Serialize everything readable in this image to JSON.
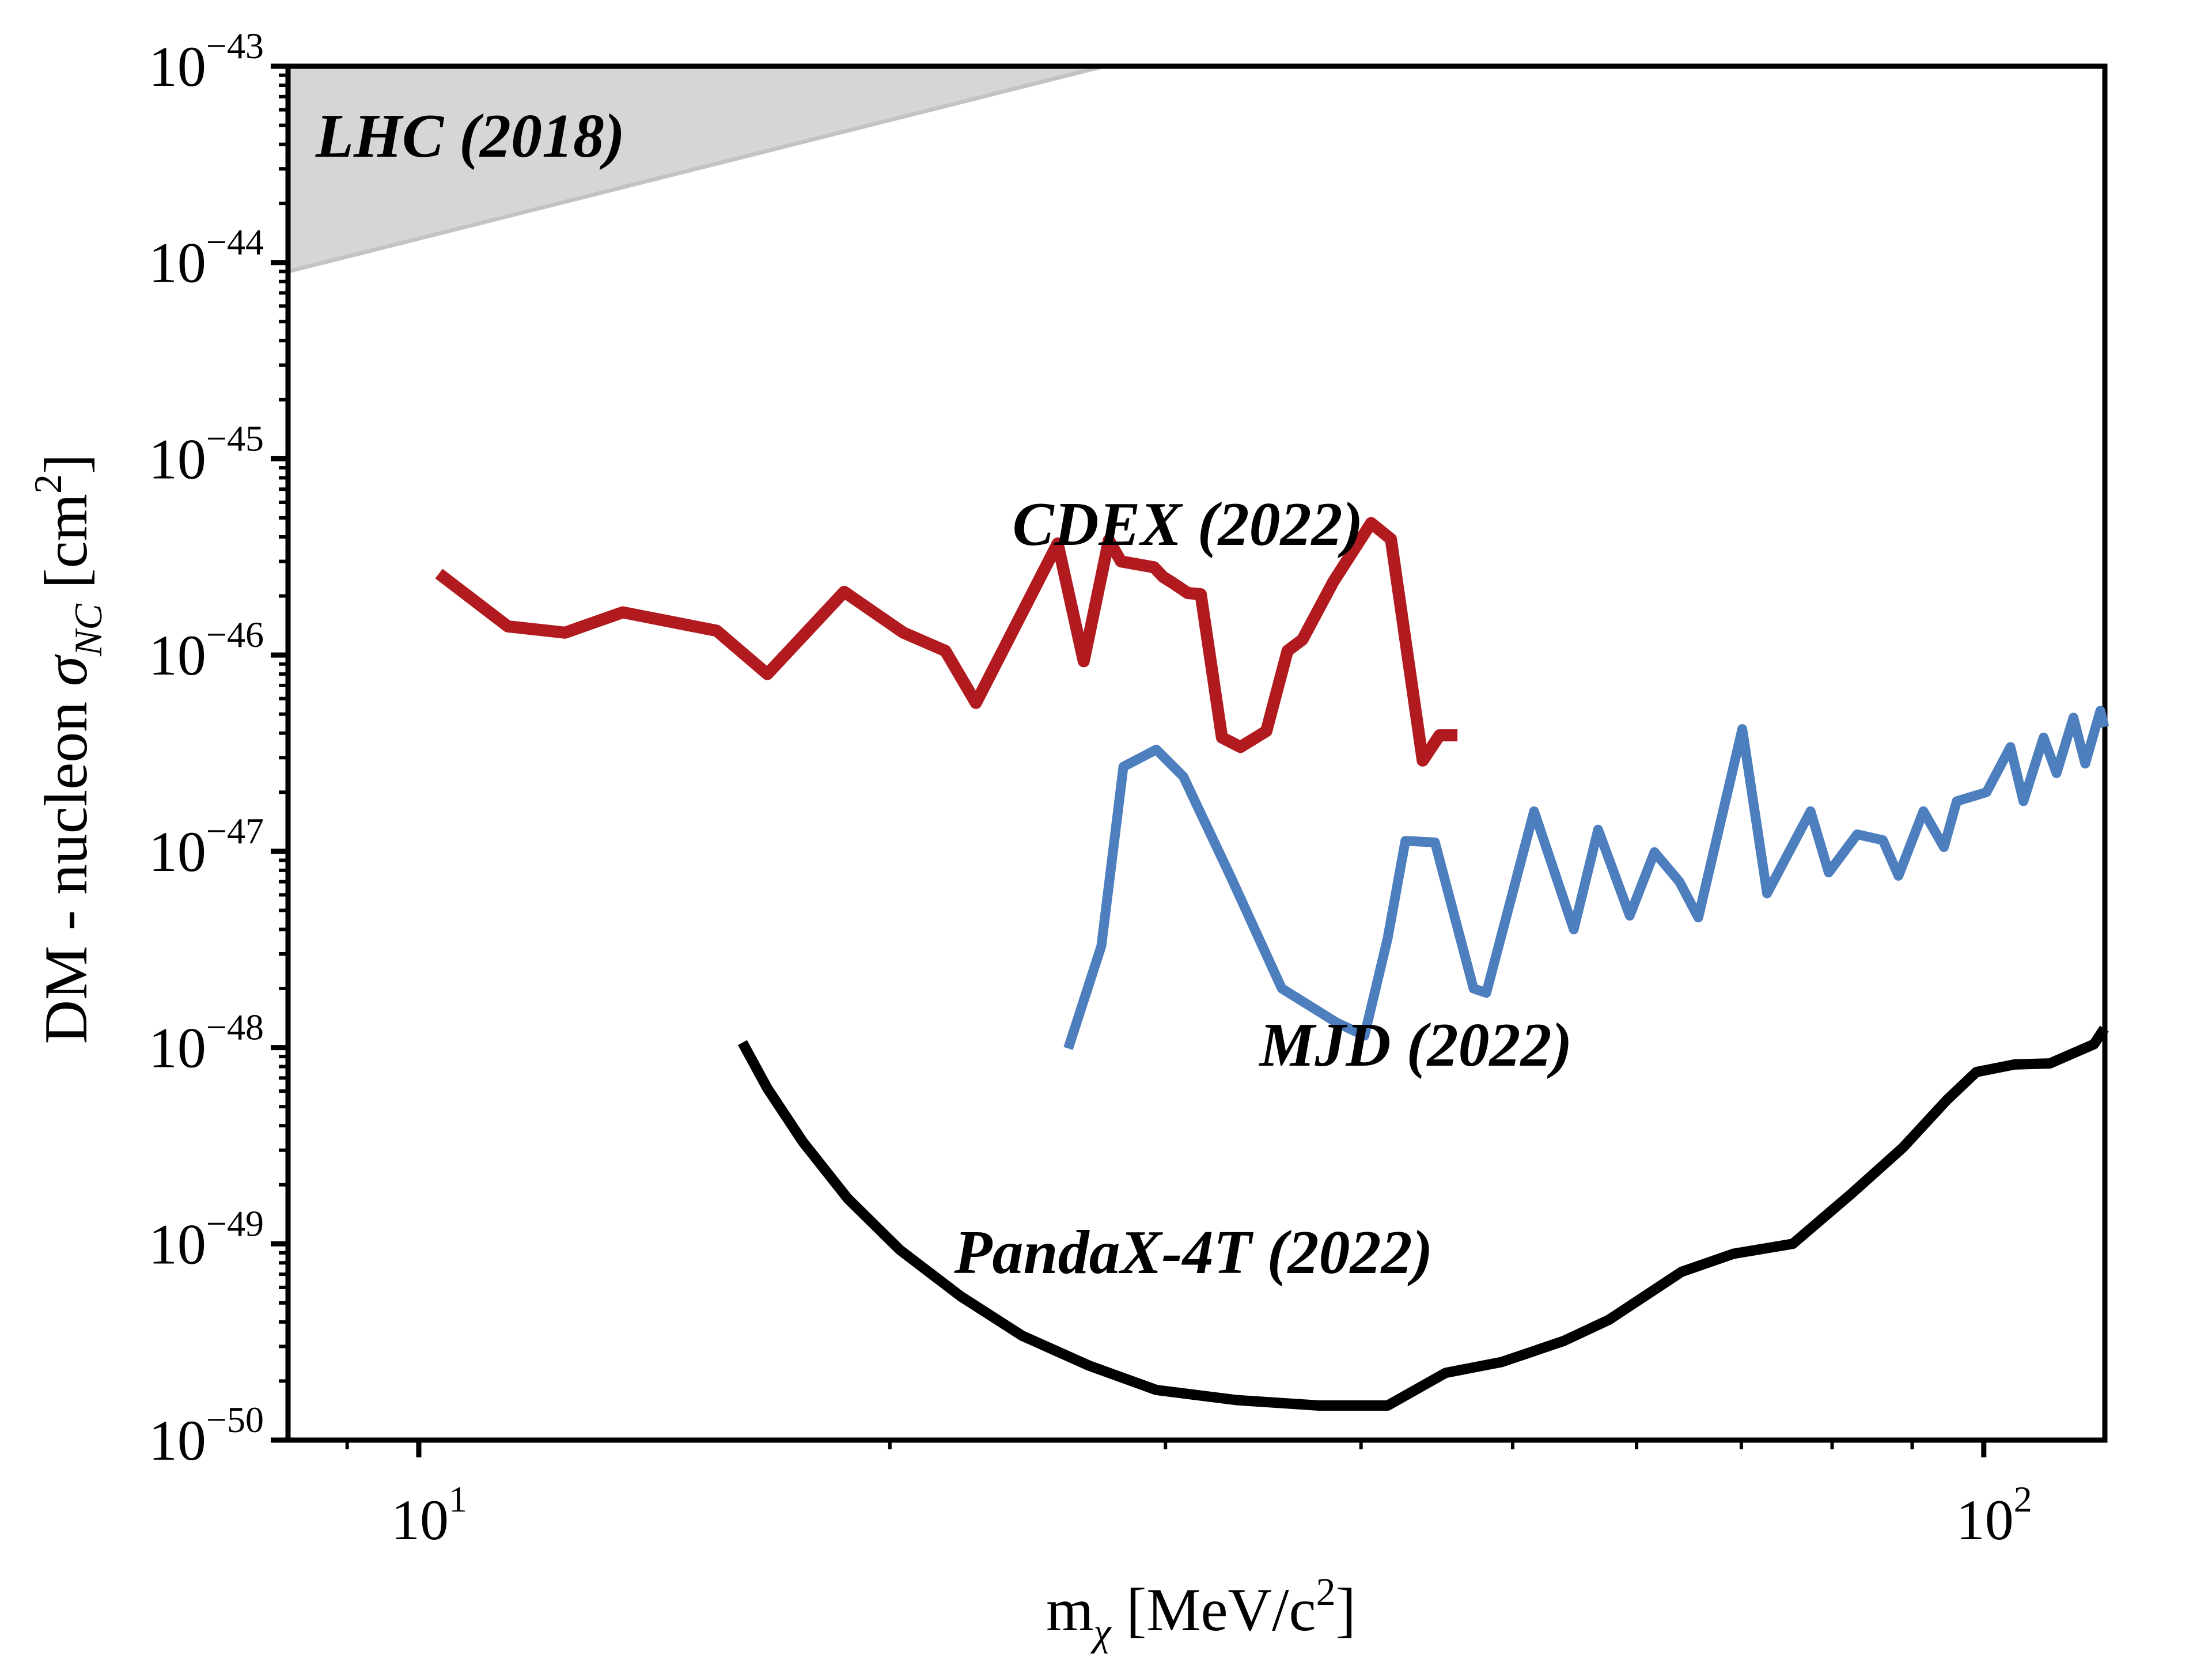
{
  "chart_data": {
    "type": "line",
    "title": "",
    "x_scale": "log",
    "y_scale": "log",
    "grid": false,
    "legend_position": "none",
    "xlim": [
      8.25,
      119.5
    ],
    "ylim": [
      1e-50,
      1e-43
    ],
    "x_tick_exponents": [
      1,
      2
    ],
    "y_tick_exponents": [
      -43,
      -44,
      -45,
      -46,
      -47,
      -48,
      -49,
      -50
    ],
    "xlabel_parts": {
      "main": "m",
      "sub": "χ",
      "mid": " [MeV/c",
      "sup": "2",
      "end": "]"
    },
    "ylabel_parts": {
      "main": "DM - nucleon ",
      "sym": "σ",
      "sub": "NC",
      "mid": " [cm",
      "sup": "2",
      "end": "]"
    },
    "excluded_region": {
      "name": "LHC (2018)",
      "fill_color": "#d6d6d6",
      "edge_color": "#c3c3c3",
      "boundary": [
        [
          8.25,
          9e-45
        ],
        [
          27.4,
          1e-43
        ]
      ]
    },
    "series": [
      {
        "name": "CDEX (2022)",
        "color": "#b11a1f",
        "points": [
          [
            10.3,
            2.6e-46
          ],
          [
            11.4,
            1.4e-46
          ],
          [
            12.4,
            1.3e-46
          ],
          [
            13.5,
            1.65e-46
          ],
          [
            15.5,
            1.33e-46
          ],
          [
            16.7,
            8e-47
          ],
          [
            18.7,
            2.1e-46
          ],
          [
            20.4,
            1.3e-46
          ],
          [
            21.7,
            1.05e-46
          ],
          [
            22.7,
            5.7e-47
          ],
          [
            25.6,
            3.7e-46
          ],
          [
            26.6,
            9.3e-47
          ],
          [
            27.6,
            3.85e-46
          ],
          [
            28.1,
            3e-46
          ],
          [
            29.5,
            2.8e-46
          ],
          [
            29.9,
            2.5e-46
          ],
          [
            30.4,
            2.3e-46
          ],
          [
            31.0,
            2.07e-46
          ],
          [
            31.6,
            2.04e-46
          ],
          [
            32.6,
            3.8e-47
          ],
          [
            33.5,
            3.4e-47
          ],
          [
            34.8,
            4.1e-47
          ],
          [
            35.9,
            1.05e-46
          ],
          [
            36.7,
            1.2e-46
          ],
          [
            38.4,
            2.36e-46
          ],
          [
            40.6,
            4.7e-46
          ],
          [
            41.8,
            3.9e-46
          ],
          [
            43.8,
            2.9e-47
          ],
          [
            44.9,
            3.9e-47
          ],
          [
            46.1,
            3.9e-47
          ]
        ]
      },
      {
        "name": "MJD (2022)",
        "color": "#4d7ebd",
        "points": [
          [
            26.0,
            9.9e-49
          ],
          [
            27.3,
            3.3e-48
          ],
          [
            28.2,
            2.7e-47
          ],
          [
            29.6,
            3.3e-47
          ],
          [
            30.8,
            2.4e-47
          ],
          [
            33.0,
            7.5e-48
          ],
          [
            35.6,
            2e-48
          ],
          [
            38.6,
            1.34e-48
          ],
          [
            40.2,
            1.15e-48
          ],
          [
            41.6,
            3.6e-48
          ],
          [
            42.7,
            1.13e-47
          ],
          [
            44.6,
            1.11e-47
          ],
          [
            47.2,
            2e-48
          ],
          [
            48.1,
            1.9e-48
          ],
          [
            51.6,
            1.6e-47
          ],
          [
            54.7,
            4e-48
          ],
          [
            56.7,
            1.29e-47
          ],
          [
            59.4,
            4.7e-48
          ],
          [
            61.6,
            9.9e-48
          ],
          [
            63.9,
            7e-48
          ],
          [
            65.7,
            4.6e-48
          ],
          [
            70.1,
            4.2e-47
          ],
          [
            72.7,
            6.1e-48
          ],
          [
            77.5,
            1.6e-47
          ],
          [
            79.6,
            7.8e-48
          ],
          [
            83.0,
            1.22e-47
          ],
          [
            86.2,
            1.14e-47
          ],
          [
            88.2,
            7.5e-48
          ],
          [
            91.5,
            1.6e-47
          ],
          [
            94.3,
            1.05e-47
          ],
          [
            96.1,
            1.8e-47
          ],
          [
            100.4,
            2e-47
          ],
          [
            104.0,
            3.4e-47
          ],
          [
            106.0,
            1.8e-47
          ],
          [
            109.2,
            3.8e-47
          ],
          [
            111.3,
            2.5e-47
          ],
          [
            114.1,
            4.8e-47
          ],
          [
            116.1,
            2.8e-47
          ],
          [
            118.7,
            5.2e-47
          ],
          [
            119.4,
            4.3e-47
          ]
        ]
      },
      {
        "name": "PandaX-4T (2022)",
        "color": "#000000",
        "points": [
          [
            16.1,
            1.06e-48
          ],
          [
            16.7,
            6.2e-49
          ],
          [
            17.6,
            3.3e-49
          ],
          [
            18.8,
            1.7e-49
          ],
          [
            20.3,
            9.3e-50
          ],
          [
            22.2,
            5.4e-50
          ],
          [
            24.3,
            3.4e-50
          ],
          [
            26.8,
            2.4e-50
          ],
          [
            29.6,
            1.8e-50
          ],
          [
            33.3,
            1.6e-50
          ],
          [
            37.6,
            1.5e-50
          ],
          [
            41.6,
            1.5e-50
          ],
          [
            45.3,
            2.2e-50
          ],
          [
            49.2,
            2.5e-50
          ],
          [
            53.9,
            3.2e-50
          ],
          [
            57.6,
            4.1e-50
          ],
          [
            64.1,
            7.2e-50
          ],
          [
            69.2,
            8.9e-50
          ],
          [
            75.5,
            1e-49
          ],
          [
            82.3,
            1.8e-49
          ],
          [
            88.8,
            3.1e-49
          ],
          [
            94.7,
            5.4e-49
          ],
          [
            98.9,
            7.5e-49
          ],
          [
            104.6,
            8.2e-49
          ],
          [
            110.2,
            8.3e-49
          ],
          [
            117.6,
            1.04e-48
          ],
          [
            119.4,
            1.25e-48
          ]
        ]
      }
    ],
    "annotations": [
      {
        "id": "lhc",
        "text": "LHC (2018)",
        "color": "#000000"
      },
      {
        "id": "cdex",
        "text": "CDEX (2022)",
        "color": "#b11a1f"
      },
      {
        "id": "mjd",
        "text": "MJD (2022)",
        "color": "#4d7ebd"
      },
      {
        "id": "pandax",
        "text": "PandaX-4T (2022)",
        "color": "#000000"
      }
    ]
  }
}
